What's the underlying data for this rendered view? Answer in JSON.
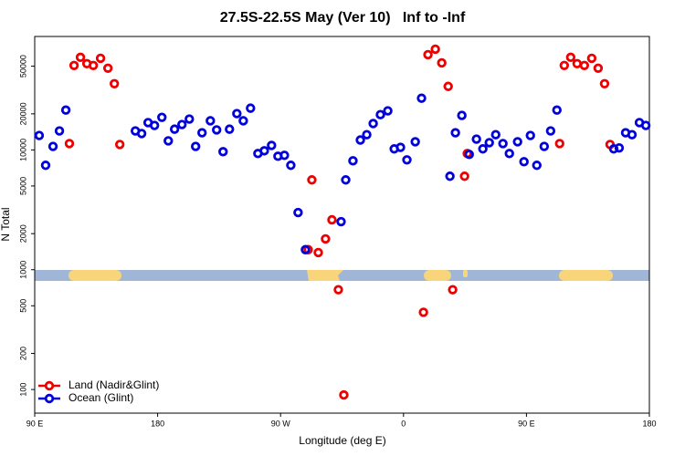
{
  "chart_data": {
    "type": "scatter",
    "title": "27.5S-22.5S May (Ver 10)   Inf to -Inf",
    "x_label": "Longitude (deg E)",
    "y_label": "N Total",
    "xlim": [
      90,
      540
    ],
    "xticks": [
      {
        "value": 90,
        "label": "90 E"
      },
      180,
      {
        "value": 270,
        "label": "90 W"
      },
      {
        "value": 360,
        "label": "0"
      },
      {
        "value": 450,
        "label": "90 E"
      },
      {
        "value": 540,
        "label": "180"
      }
    ],
    "ylim": [
      63.5,
      88500
    ],
    "y_scale": "log",
    "yticks": [
      100,
      200,
      500,
      1000,
      2000,
      5000,
      10000,
      20000,
      50000
    ],
    "legend_position": "bottom-left",
    "series": [
      {
        "name": "Land (Nadir&Glint)",
        "color": "#ee0000",
        "x": [
          115.4,
          118.8,
          123.5,
          128.2,
          132.9,
          138.2,
          143.6,
          148.3,
          152.3,
          292.9,
          290.2,
          297.6,
          302.9,
          307.6,
          312.3,
          316.3,
          374.6,
          377.9,
          383.3,
          388.0,
          392.7,
          396.0,
          404.7,
          406.7,
          474.3,
          477.7,
          482.4,
          487.1,
          492.4,
          497.8,
          502.5,
          507.2,
          511.2
        ],
        "values": [
          11300,
          50700,
          59300,
          52500,
          50700,
          58200,
          48100,
          35700,
          11100,
          5620,
          1470,
          1390,
          1810,
          2610,
          681,
          90,
          441,
          62400,
          69300,
          53300,
          33900,
          681,
          6030,
          9330,
          11300,
          50700,
          59300,
          52500,
          50700,
          58200,
          48100,
          35700,
          11100
        ]
      },
      {
        "name": "Ocean (Glint)",
        "color": "#0000dd",
        "x": [
          93.3,
          98.0,
          103.4,
          108.1,
          112.8,
          163.7,
          168.3,
          173.0,
          177.7,
          183.1,
          187.8,
          192.4,
          197.8,
          203.2,
          207.8,
          212.5,
          218.6,
          223.2,
          227.9,
          232.6,
          238.0,
          242.7,
          248.0,
          253.4,
          258.1,
          263.4,
          268.1,
          272.8,
          277.5,
          282.8,
          288.2,
          314.3,
          317.7,
          323.0,
          328.4,
          333.1,
          337.8,
          343.1,
          348.5,
          353.2,
          357.8,
          362.5,
          368.6,
          373.2,
          394.0,
          398.0,
          402.7,
          408.1,
          413.4,
          418.1,
          422.8,
          427.5,
          432.8,
          437.5,
          443.5,
          448.2,
          452.9,
          457.6,
          463.0,
          467.7,
          472.3,
          513.9,
          517.9,
          522.6,
          527.3,
          532.7,
          537.4
        ],
        "values": [
          13200,
          7440,
          10700,
          14400,
          21500,
          14400,
          13700,
          16900,
          16000,
          18700,
          11900,
          14900,
          16300,
          18100,
          10700,
          13900,
          17500,
          14700,
          9660,
          14900,
          20100,
          17500,
          22300,
          9330,
          9830,
          10900,
          8850,
          9010,
          7440,
          3000,
          1470,
          2520,
          5620,
          8110,
          12100,
          13400,
          16600,
          19700,
          21200,
          10200,
          10500,
          8260,
          11700,
          27000,
          6030,
          13900,
          19400,
          9170,
          12300,
          10200,
          11500,
          13400,
          11300,
          9330,
          11700,
          7970,
          13200,
          7440,
          10700,
          14400,
          21500,
          10200,
          10400,
          13900,
          13400,
          16900,
          16000
        ]
      }
    ]
  }
}
